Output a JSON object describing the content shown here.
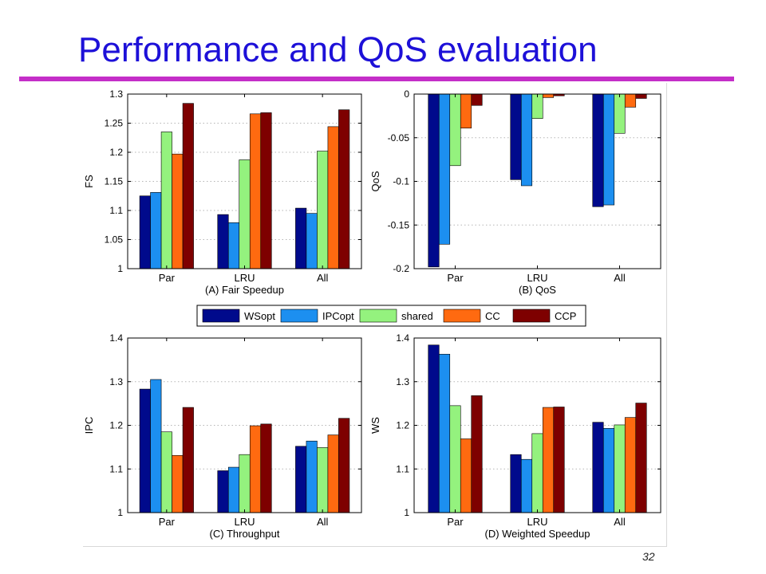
{
  "slide": {
    "title": "Performance and QoS evaluation",
    "page_number": "32"
  },
  "legend": {
    "entries": [
      {
        "label": "WSopt",
        "color": "#000a8c"
      },
      {
        "label": "IPCopt",
        "color": "#1c8ff0"
      },
      {
        "label": "shared",
        "color": "#94f27e"
      },
      {
        "label": "CC",
        "color": "#ff6a10"
      },
      {
        "label": "CCP",
        "color": "#7e0000"
      }
    ]
  },
  "chart_data": [
    {
      "type": "bar",
      "id": "A",
      "caption": "(A) Fair Speedup",
      "ylabel": "FS",
      "xlabel": "",
      "categories": [
        "Par",
        "LRU",
        "All"
      ],
      "ylim": [
        1,
        1.3
      ],
      "yticks": [
        1,
        1.05,
        1.1,
        1.15,
        1.2,
        1.25,
        1.3
      ],
      "ytick_labels": [
        "1",
        "1.05",
        "1.1",
        "1.15",
        "1.2",
        "1.25",
        "1.3"
      ],
      "grid": true,
      "series": [
        {
          "name": "WSopt",
          "values": [
            1.125,
            1.093,
            1.104
          ]
        },
        {
          "name": "IPCopt",
          "values": [
            1.131,
            1.079,
            1.095
          ]
        },
        {
          "name": "shared",
          "values": [
            1.235,
            1.187,
            1.202
          ]
        },
        {
          "name": "CC",
          "values": [
            1.197,
            1.266,
            1.244
          ]
        },
        {
          "name": "CCP",
          "values": [
            1.284,
            1.268,
            1.273
          ]
        }
      ]
    },
    {
      "type": "bar",
      "id": "B",
      "caption": "(B) QoS",
      "ylabel": "QoS",
      "xlabel": "",
      "categories": [
        "Par",
        "LRU",
        "All"
      ],
      "ylim": [
        -0.2,
        0
      ],
      "yticks": [
        -0.2,
        -0.15,
        -0.1,
        -0.05,
        0
      ],
      "ytick_labels": [
        "-0.2",
        "-0.15",
        "-0.1",
        "-0.05",
        "0"
      ],
      "grid": true,
      "series": [
        {
          "name": "WSopt",
          "values": [
            -0.198,
            -0.098,
            -0.129
          ]
        },
        {
          "name": "IPCopt",
          "values": [
            -0.172,
            -0.105,
            -0.127
          ]
        },
        {
          "name": "shared",
          "values": [
            -0.082,
            -0.028,
            -0.045
          ]
        },
        {
          "name": "CC",
          "values": [
            -0.039,
            -0.004,
            -0.015
          ]
        },
        {
          "name": "CCP",
          "values": [
            -0.013,
            -0.002,
            -0.005
          ]
        }
      ]
    },
    {
      "type": "bar",
      "id": "C",
      "caption": "(C) Throughput",
      "ylabel": "IPC",
      "xlabel": "",
      "categories": [
        "Par",
        "LRU",
        "All"
      ],
      "ylim": [
        1,
        1.4
      ],
      "yticks": [
        1,
        1.1,
        1.2,
        1.3,
        1.4
      ],
      "ytick_labels": [
        "1",
        "1.1",
        "1.2",
        "1.3",
        "1.4"
      ],
      "grid": true,
      "series": [
        {
          "name": "WSopt",
          "values": [
            1.283,
            1.096,
            1.152
          ]
        },
        {
          "name": "IPCopt",
          "values": [
            1.305,
            1.104,
            1.164
          ]
        },
        {
          "name": "shared",
          "values": [
            1.185,
            1.133,
            1.149
          ]
        },
        {
          "name": "CC",
          "values": [
            1.131,
            1.199,
            1.178
          ]
        },
        {
          "name": "CCP",
          "values": [
            1.241,
            1.203,
            1.216
          ]
        }
      ]
    },
    {
      "type": "bar",
      "id": "D",
      "caption": "(D) Weighted Speedup",
      "ylabel": "WS",
      "xlabel": "",
      "categories": [
        "Par",
        "LRU",
        "All"
      ],
      "ylim": [
        1,
        1.4
      ],
      "yticks": [
        1,
        1.1,
        1.2,
        1.3,
        1.4
      ],
      "ytick_labels": [
        "1",
        "1.1",
        "1.2",
        "1.3",
        "1.4"
      ],
      "grid": true,
      "series": [
        {
          "name": "WSopt",
          "values": [
            1.384,
            1.133,
            1.207
          ]
        },
        {
          "name": "IPCopt",
          "values": [
            1.363,
            1.122,
            1.193
          ]
        },
        {
          "name": "shared",
          "values": [
            1.245,
            1.181,
            1.201
          ]
        },
        {
          "name": "CC",
          "values": [
            1.169,
            1.241,
            1.218
          ]
        },
        {
          "name": "CCP",
          "values": [
            1.268,
            1.242,
            1.251
          ]
        }
      ]
    }
  ]
}
